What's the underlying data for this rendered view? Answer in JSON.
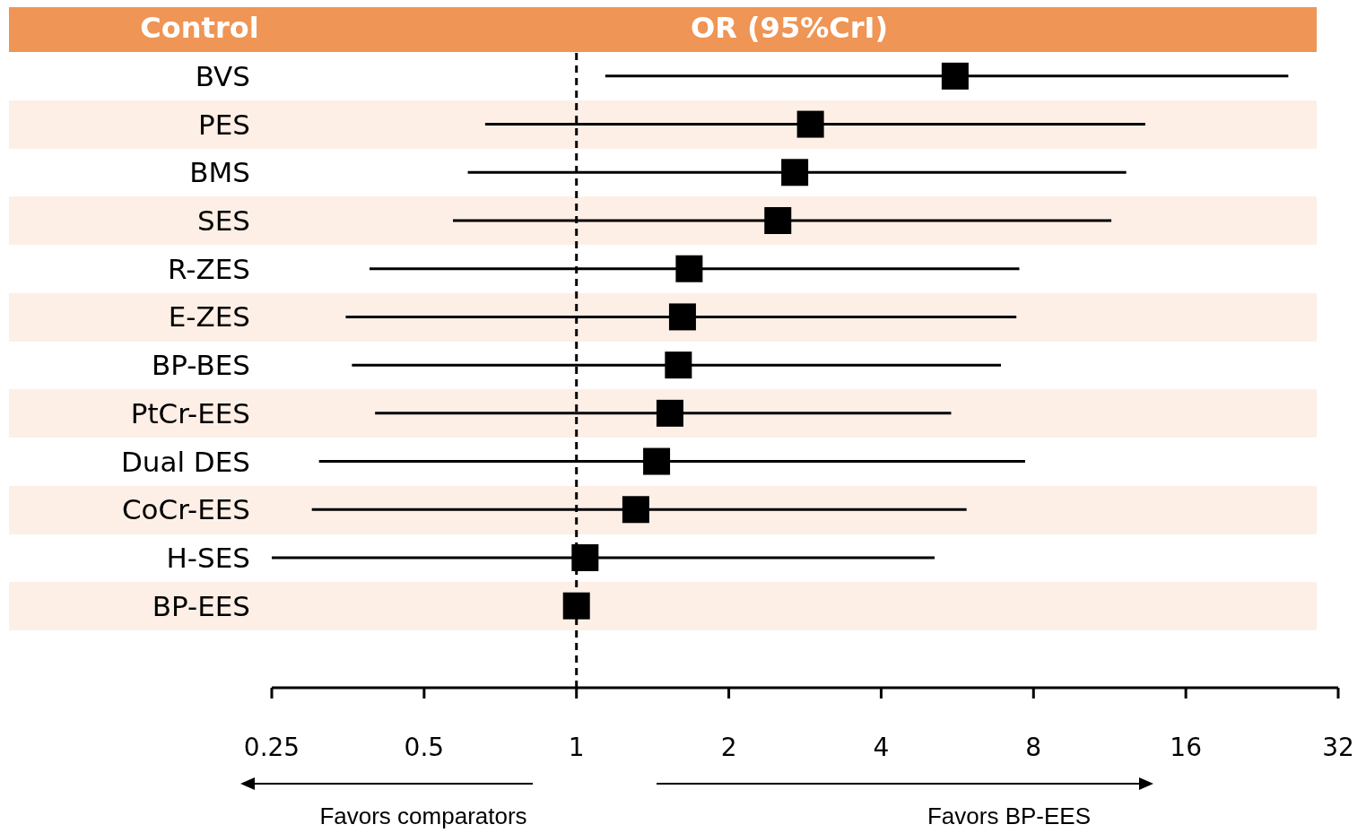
{
  "chart_data": {
    "type": "scatter",
    "xlabel": "OR (95%CrI)",
    "ylabel": "Control",
    "categories": [
      "BVS",
      "PES",
      "BMS",
      "SES",
      "R-ZES",
      "E-ZES",
      "BP-BES",
      "PtCr-EES",
      "Dual DES",
      "CoCr-EES",
      "H-SES",
      "BP-EES"
    ],
    "series": [
      {
        "color": "#000000",
        "values": [
          5.6,
          2.9,
          2.7,
          2.5,
          1.67,
          1.62,
          1.59,
          1.53,
          1.44,
          1.31,
          1.04,
          1
        ],
        "errors": [
          [
            1.14,
            25.5
          ],
          [
            0.66,
            13.3
          ],
          [
            0.61,
            12.2
          ],
          [
            0.57,
            11.4
          ],
          [
            0.39,
            7.5
          ],
          [
            0.35,
            7.4
          ],
          [
            0.36,
            6.9
          ],
          [
            0.4,
            5.5
          ],
          [
            0.31,
            7.7
          ],
          [
            0.3,
            5.9
          ],
          [
            0.25,
            5.1
          ],
          null
        ]
      }
    ],
    "orientation": "horizontal",
    "log": "x",
    "xlim": [
      0.25,
      32
    ],
    "xticks": [
      0.25,
      0.5,
      1,
      2,
      4,
      8,
      16,
      32
    ],
    "marker": "square",
    "ref_lines": [
      {
        "axis": "x",
        "value": 1,
        "line_style": "dashed",
        "color": "#000000"
      }
    ],
    "annotations": [
      "Favors comparators",
      "Favors BP-EES"
    ]
  }
}
